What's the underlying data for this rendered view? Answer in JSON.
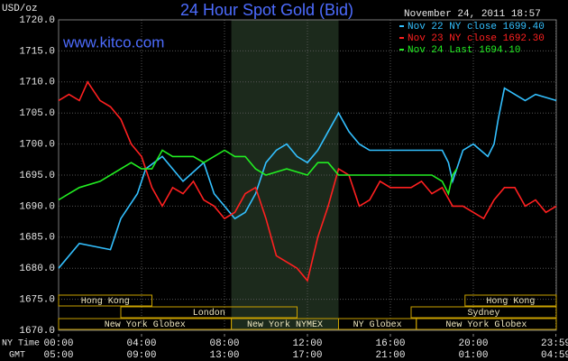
{
  "chart_data": {
    "type": "line",
    "title": "24 Hour Spot Gold (Bid)",
    "subtitle": "www.kitco.com",
    "y_label": "USD/oz",
    "legend_title": "November 24, 2011 18:57",
    "x_row_labels": [
      "NY Time",
      "GMT"
    ],
    "xlim": [
      0,
      24
    ],
    "ylim": [
      1670,
      1720
    ],
    "grid": true,
    "yticks": [
      {
        "value": 1670,
        "label": "1670.0"
      },
      {
        "value": 1675,
        "label": "1675.0"
      },
      {
        "value": 1680,
        "label": "1680.0"
      },
      {
        "value": 1685,
        "label": "1685.0"
      },
      {
        "value": 1690,
        "label": "1690.0"
      },
      {
        "value": 1695,
        "label": "1695.0"
      },
      {
        "value": 1700,
        "label": "1700.0"
      },
      {
        "value": 1705,
        "label": "1705.0"
      },
      {
        "value": 1710,
        "label": "1710.0"
      },
      {
        "value": 1715,
        "label": "1715.0"
      },
      {
        "value": 1720,
        "label": "1720.0"
      }
    ],
    "xticks": [
      {
        "value": 0,
        "label": "00:00"
      },
      {
        "value": 4,
        "label": "04:00"
      },
      {
        "value": 8,
        "label": "08:00"
      },
      {
        "value": 12,
        "label": "12:00"
      },
      {
        "value": 16,
        "label": "16:00"
      },
      {
        "value": 20,
        "label": "20:00"
      },
      {
        "value": 23.98,
        "label": "23:59"
      }
    ],
    "x2ticks": [
      {
        "value": 0,
        "label": "05:00"
      },
      {
        "value": 4,
        "label": "09:00"
      },
      {
        "value": 8,
        "label": "13:00"
      },
      {
        "value": 12,
        "label": "17:00"
      },
      {
        "value": 16,
        "label": "21:00"
      },
      {
        "value": 20,
        "label": "01:00"
      },
      {
        "value": 23.98,
        "label": "04:59"
      }
    ],
    "highlight": {
      "start": 8.33,
      "end": 13.5,
      "color": "#1c2a1c"
    },
    "session_rows": [
      [
        {
          "label": "Hong Kong",
          "start": 0,
          "end": 4.5
        },
        {
          "label": "Hong Kong",
          "start": 19.6,
          "end": 24
        }
      ],
      [
        {
          "label": "London",
          "start": 3,
          "end": 11.5
        },
        {
          "label": "Sydney",
          "start": 17,
          "end": 24
        }
      ],
      [
        {
          "label": "New York Globex",
          "start": 0,
          "end": 8.33
        },
        {
          "label": "New York NYMEX",
          "start": 8.33,
          "end": 13.5
        },
        {
          "label": "NY Globex",
          "start": 13.5,
          "end": 17.25
        },
        {
          "label": "New York Globex",
          "start": 17.25,
          "end": 24
        }
      ]
    ],
    "series": [
      {
        "name": "Nov 22 NY close 1699.40",
        "color": "#33c0ff",
        "x": [
          0,
          1,
          2.5,
          3,
          3.8,
          4.2,
          5,
          6,
          7,
          7.5,
          8,
          8.5,
          9,
          9.5,
          10,
          10.5,
          11,
          11.5,
          12,
          12.5,
          13,
          13.5,
          14,
          14.5,
          15,
          17,
          18.5,
          18.8,
          19,
          19.5,
          20,
          20.7,
          21,
          21.2,
          21.5,
          22,
          22.5,
          23,
          24
        ],
        "values": [
          1680,
          1684,
          1683,
          1688,
          1692,
          1696,
          1698,
          1694,
          1697,
          1692,
          1690,
          1688,
          1689,
          1692,
          1697,
          1699,
          1700,
          1698,
          1697,
          1699,
          1702,
          1705,
          1702,
          1700,
          1699,
          1699,
          1699,
          1697,
          1694,
          1699,
          1700,
          1698,
          1700,
          1704,
          1709,
          1708,
          1707,
          1708,
          1707
        ]
      },
      {
        "name": "Nov 23 NY close 1692.30",
        "color": "#ff2020",
        "x": [
          0,
          0.5,
          1,
          1.4,
          2,
          2.5,
          3,
          3.5,
          4,
          4.5,
          5,
          5.5,
          6,
          6.5,
          7,
          7.5,
          8,
          8.5,
          9,
          9.5,
          10,
          10.5,
          11,
          11.5,
          12,
          12.5,
          13,
          13.5,
          14,
          14.5,
          15,
          15.5,
          16,
          17,
          17.5,
          18,
          18.5,
          19,
          19.5,
          20,
          20.5,
          21,
          21.5,
          22,
          22.5,
          23,
          23.5,
          24
        ],
        "values": [
          1707,
          1708,
          1707,
          1710,
          1707,
          1706,
          1704,
          1700,
          1698,
          1693,
          1690,
          1693,
          1692,
          1694,
          1691,
          1690,
          1688,
          1689,
          1692,
          1693,
          1688,
          1682,
          1681,
          1680,
          1678,
          1685,
          1690,
          1696,
          1695,
          1690,
          1691,
          1694,
          1693,
          1693,
          1694,
          1692,
          1693,
          1690,
          1690,
          1689,
          1688,
          1691,
          1693,
          1693,
          1690,
          1691,
          1689,
          1690
        ]
      },
      {
        "name": "Nov 24 Last 1694.10",
        "color": "#22ee22",
        "x": [
          0,
          0.5,
          1,
          2,
          3,
          3.5,
          4,
          4.5,
          5,
          5.5,
          6,
          6.5,
          7,
          8,
          8.5,
          9,
          9.5,
          10,
          11,
          12,
          12.5,
          13,
          13.5,
          14,
          15,
          16,
          17,
          18,
          18.5,
          18.8,
          19,
          19.2
        ],
        "values": [
          1691,
          1692,
          1693,
          1694,
          1696,
          1697,
          1696,
          1696,
          1699,
          1698,
          1698,
          1698,
          1697,
          1699,
          1698,
          1698,
          1696,
          1695,
          1696,
          1695,
          1697,
          1697,
          1695,
          1695,
          1695,
          1695,
          1695,
          1695,
          1694,
          1692,
          1695,
          1696
        ]
      }
    ]
  }
}
